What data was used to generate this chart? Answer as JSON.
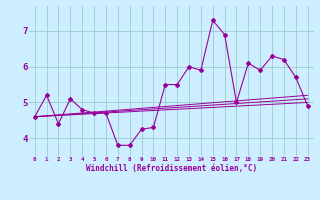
{
  "title": "",
  "xlabel": "Windchill (Refroidissement éolien,°C)",
  "background_color": "#cceeff",
  "grid_color": "#99cccc",
  "line_color": "#990099",
  "xlim": [
    -0.5,
    23.5
  ],
  "ylim": [
    3.5,
    7.7
  ],
  "yticks": [
    4,
    5,
    6,
    7
  ],
  "xtick_labels": [
    "0",
    "1",
    "2",
    "3",
    "4",
    "5",
    "6",
    "7",
    "8",
    "9",
    "10",
    "11",
    "12",
    "13",
    "14",
    "15",
    "16",
    "17",
    "18",
    "19",
    "20",
    "21",
    "22",
    "23"
  ],
  "series1": {
    "x": [
      0,
      1,
      2,
      3,
      4,
      5,
      6,
      7,
      8,
      9,
      10,
      11,
      12,
      13,
      14,
      15,
      16,
      17,
      18,
      19,
      20,
      21,
      22,
      23
    ],
    "y": [
      4.6,
      5.2,
      4.4,
      5.1,
      4.8,
      4.7,
      4.7,
      3.8,
      3.8,
      4.25,
      4.3,
      5.5,
      5.5,
      6.0,
      5.9,
      7.3,
      6.9,
      5.0,
      6.1,
      5.9,
      6.3,
      6.2,
      5.7,
      4.9
    ]
  },
  "series2": {
    "x": [
      0,
      23
    ],
    "y": [
      4.6,
      5.0
    ]
  },
  "series3": {
    "x": [
      0,
      23
    ],
    "y": [
      4.6,
      5.1
    ]
  },
  "series4": {
    "x": [
      0,
      23
    ],
    "y": [
      4.6,
      5.2
    ]
  }
}
